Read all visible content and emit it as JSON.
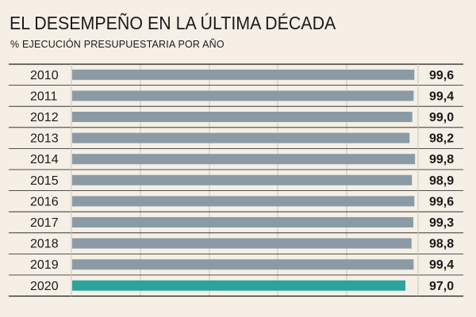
{
  "chart_data": {
    "type": "bar",
    "orientation": "horizontal",
    "title": "EL DESEMPEÑO EN LA ÚLTIMA DÉCADA",
    "subtitle": "% EJECUCIÓN PRESUPUESTARIA POR AÑO",
    "categories": [
      "2010",
      "2011",
      "2012",
      "2013",
      "2014",
      "2015",
      "2016",
      "2017",
      "2018",
      "2019",
      "2020"
    ],
    "values": [
      99.6,
      99.4,
      99.0,
      98.2,
      99.8,
      98.9,
      99.6,
      99.3,
      98.8,
      99.4,
      97.0
    ],
    "value_labels": [
      "99,6",
      "99,4",
      "99,0",
      "98,2",
      "99,8",
      "98,9",
      "99,6",
      "99,3",
      "98,8",
      "99,4",
      "97,0"
    ],
    "xlim": [
      0,
      100
    ],
    "grid": true,
    "colors": {
      "bar": "#8a9ba6",
      "highlight_bar": "#2ea39c",
      "highlight_category": "2020",
      "background": "#f5efe6",
      "grid": "#c9c4bb"
    }
  }
}
